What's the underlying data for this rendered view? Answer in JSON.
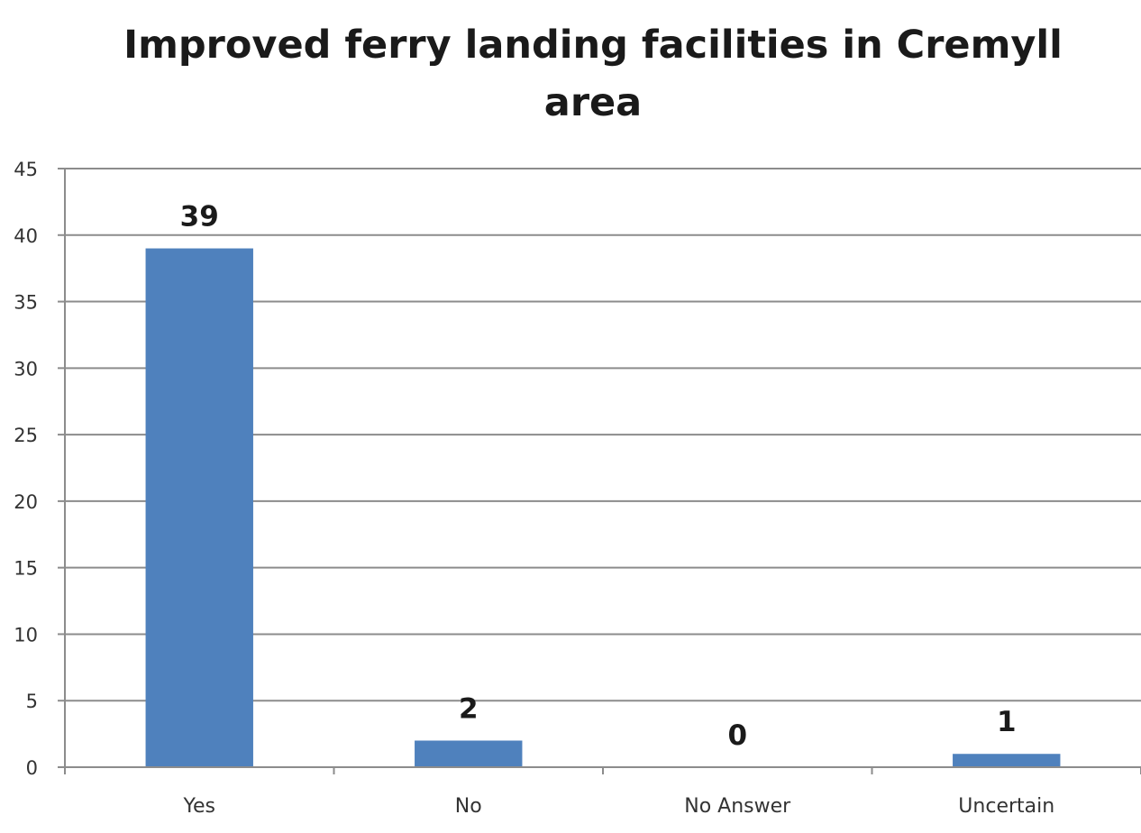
{
  "chart_data": {
    "type": "bar",
    "title_lines": [
      "Improved ferry landing facilities in Cremyll",
      "area"
    ],
    "categories": [
      "Yes",
      "No",
      "No Answer",
      "Uncertain"
    ],
    "values": [
      39,
      2,
      0,
      1
    ],
    "data_labels": [
      "39",
      "2",
      "0",
      "1"
    ],
    "ylim": [
      0,
      45
    ],
    "yticks": [
      0,
      5,
      10,
      15,
      20,
      25,
      30,
      35,
      40,
      45
    ],
    "grid": true,
    "legend": "none",
    "bar_color": "#4f81bd",
    "grid_color": "#8c8c8c"
  }
}
